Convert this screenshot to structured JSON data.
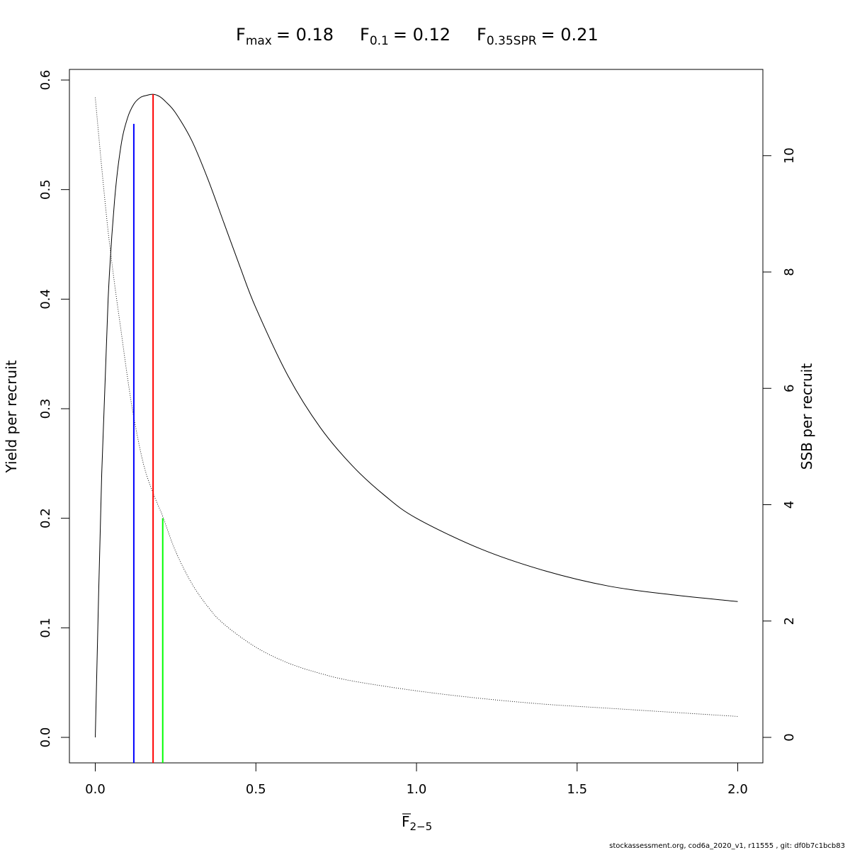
{
  "chart_data": {
    "type": "line",
    "title": {
      "fmax_base": "F",
      "fmax_sub": "max",
      "fmax_val": "= 0.18",
      "f01_base": "F",
      "f01_sub": "0.1",
      "f01_val": "= 0.12",
      "fspr_base": "F",
      "fspr_sub": "0.35SPR",
      "fspr_val": "= 0.21"
    },
    "xlabel": {
      "base": "F",
      "sub": "2−5",
      "overbar": true
    },
    "ylabel_left": "Yield per recruit",
    "ylabel_right": "SSB per recruit",
    "xlim": [
      0,
      2
    ],
    "ylim_left": [
      0,
      0.6
    ],
    "ylim_right": [
      0,
      11.3
    ],
    "x_ticks": [
      "0.0",
      "0.5",
      "1.0",
      "1.5",
      "2.0"
    ],
    "y_left_ticks": [
      "0.0",
      "0.1",
      "0.2",
      "0.3",
      "0.4",
      "0.5",
      "0.6"
    ],
    "y_right_ticks": [
      "0",
      "2",
      "4",
      "6",
      "8",
      "10"
    ],
    "grid": false,
    "series": [
      {
        "axis": "left",
        "style": "solid",
        "x": [
          0,
          0.02,
          0.04,
          0.06,
          0.08,
          0.1,
          0.12,
          0.14,
          0.16,
          0.18,
          0.2,
          0.22,
          0.25,
          0.3,
          0.35,
          0.4,
          0.45,
          0.5,
          0.6,
          0.7,
          0.8,
          0.9,
          1.0,
          1.2,
          1.4,
          1.6,
          1.8,
          2.0
        ],
        "values": [
          0,
          0.24,
          0.4,
          0.49,
          0.54,
          0.565,
          0.578,
          0.584,
          0.586,
          0.587,
          0.585,
          0.58,
          0.57,
          0.545,
          0.51,
          0.47,
          0.43,
          0.392,
          0.33,
          0.283,
          0.248,
          0.221,
          0.2,
          0.172,
          0.152,
          0.138,
          0.13,
          0.124
        ]
      },
      {
        "axis": "right",
        "style": "dotted",
        "x": [
          0,
          0.02,
          0.04,
          0.06,
          0.08,
          0.1,
          0.12,
          0.15,
          0.18,
          0.21,
          0.25,
          0.3,
          0.35,
          0.4,
          0.5,
          0.6,
          0.7,
          0.8,
          1.0,
          1.2,
          1.4,
          1.6,
          1.8,
          2.0
        ],
        "values": [
          11.0,
          9.8,
          8.7,
          7.8,
          7.0,
          6.2,
          5.5,
          4.7,
          4.2,
          3.8,
          3.2,
          2.65,
          2.25,
          1.95,
          1.55,
          1.28,
          1.1,
          0.97,
          0.8,
          0.67,
          0.57,
          0.5,
          0.43,
          0.36
        ]
      }
    ],
    "reference_lines": [
      {
        "name": "F0.1",
        "x": 0.12,
        "top": 0.56,
        "color": "#0000ff"
      },
      {
        "name": "Fmax",
        "x": 0.18,
        "top": 0.587,
        "color": "#ff0000"
      },
      {
        "name": "F0.35SPR",
        "x": 0.21,
        "top": 0.2,
        "color": "#00ff00"
      }
    ]
  },
  "footer": "stockassessment.org, cod6a_2020_v1, r11555 , git: df0b7c1bcb83"
}
